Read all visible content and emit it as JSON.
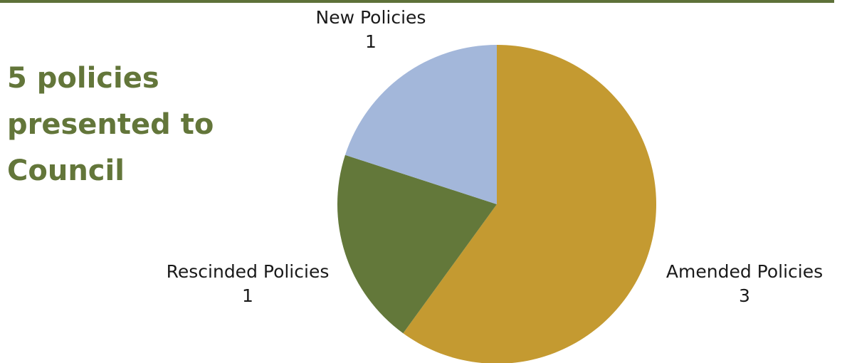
{
  "headline": {
    "lines": [
      "5 policies",
      "presented to",
      "Council"
    ],
    "color": "#63763A"
  },
  "theme": {
    "rule_color": "#5E7139"
  },
  "chart_data": {
    "type": "pie",
    "title": "",
    "slices": [
      {
        "label": "Amended Policies",
        "value": 3,
        "value_label": "3",
        "color": "#C49A31"
      },
      {
        "label": "Rescinded Policies",
        "value": 1,
        "value_label": "1",
        "color": "#63783A"
      },
      {
        "label": "New Policies",
        "value": 1,
        "value_label": "1",
        "color": "#A3B7DA"
      }
    ],
    "start": "12 o'clock",
    "direction": "clockwise",
    "legend": "none",
    "data_labels": "outside"
  }
}
